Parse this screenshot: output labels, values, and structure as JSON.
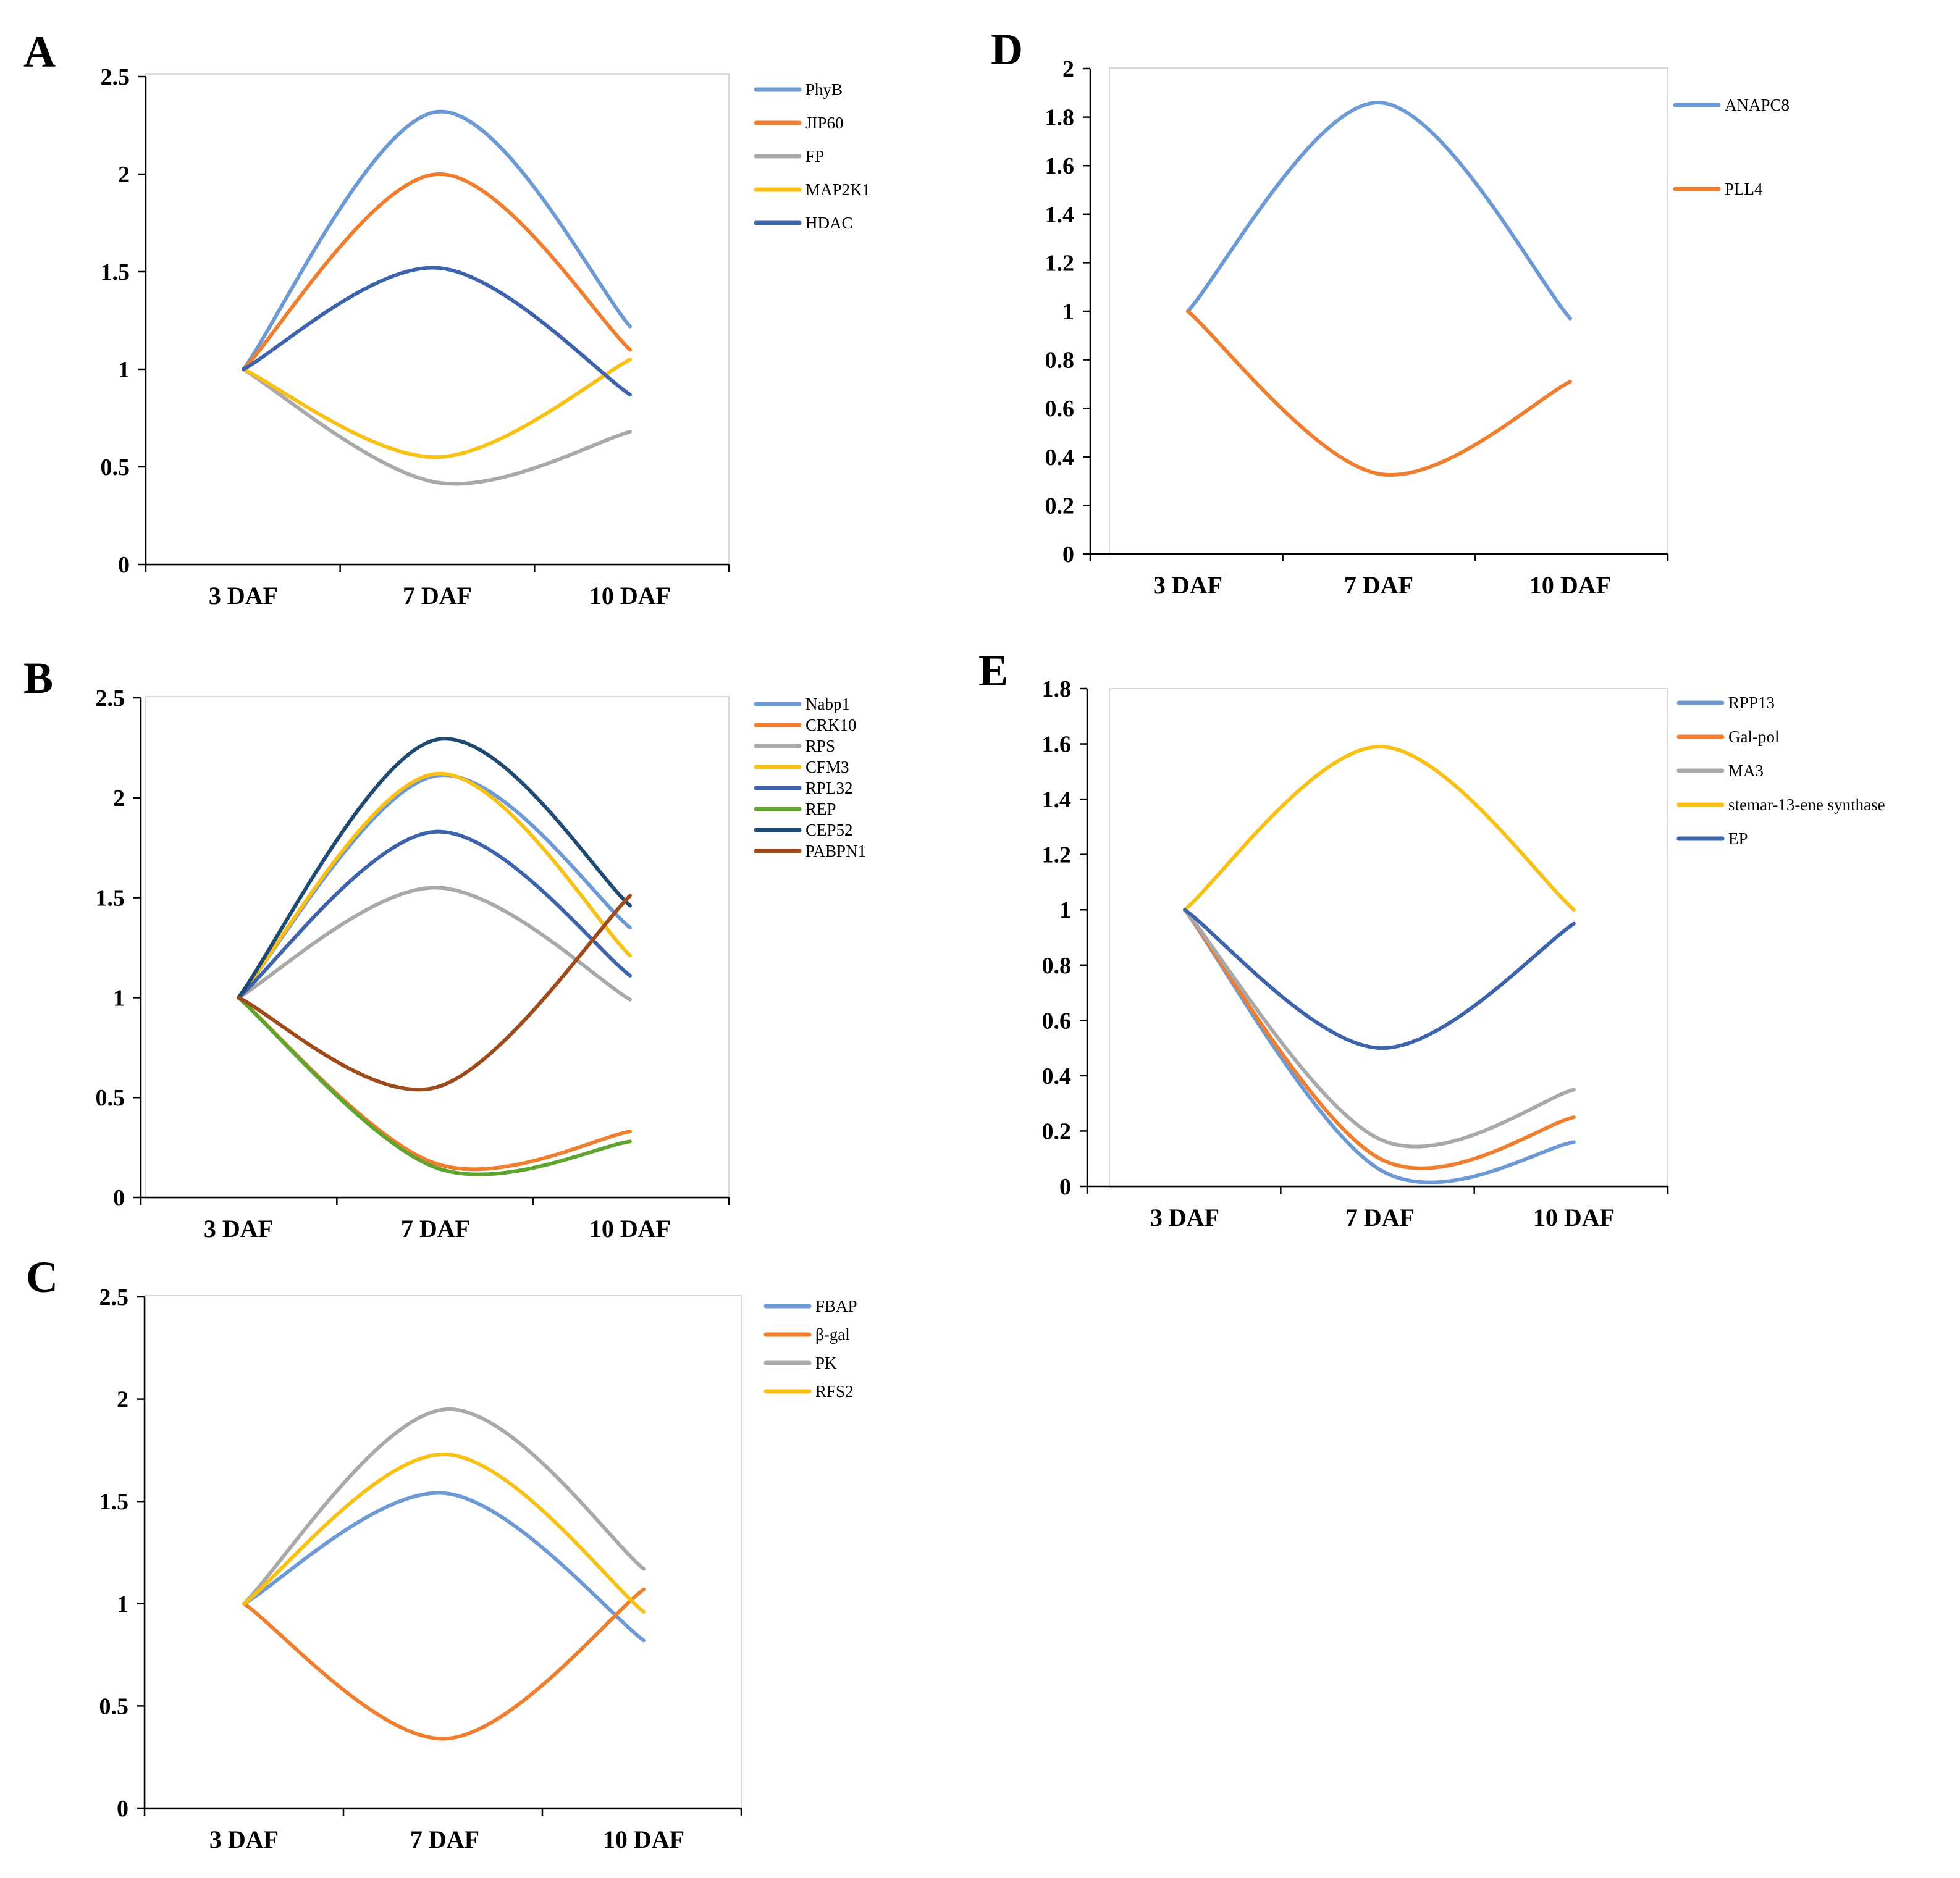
{
  "chart_data": [
    {
      "type": "line",
      "panel": "A",
      "categories": [
        "3 DAF",
        "7 DAF",
        "10 DAF"
      ],
      "ylim": [
        0,
        2.5
      ],
      "yticks": [
        0,
        0.5,
        1,
        1.5,
        2,
        2.5
      ],
      "ytick_labels": [
        "0",
        "0.5",
        "1",
        "1.5",
        "2",
        "2.5"
      ],
      "legend_position": "right",
      "series": [
        {
          "name": "PhyB",
          "color": "#6d9ad4",
          "values": [
            1,
            2.32,
            1.22
          ]
        },
        {
          "name": "JIP60",
          "color": "#ef7e2f",
          "values": [
            1,
            2.0,
            1.1
          ]
        },
        {
          "name": "FP",
          "color": "#a9a9a9",
          "values": [
            1,
            0.42,
            0.68
          ]
        },
        {
          "name": "MAP2K1",
          "color": "#f9c016",
          "values": [
            1,
            0.55,
            1.05
          ]
        },
        {
          "name": "HDAC",
          "color": "#3d63ad",
          "values": [
            1,
            1.52,
            0.87
          ]
        }
      ]
    },
    {
      "type": "line",
      "panel": "B",
      "categories": [
        "3 DAF",
        "7 DAF",
        "10 DAF"
      ],
      "ylim": [
        0,
        2.5
      ],
      "yticks": [
        0,
        0.5,
        1,
        1.5,
        2,
        2.5
      ],
      "ytick_labels": [
        "0",
        "0.5",
        "1",
        "1.5",
        "2",
        "2.5"
      ],
      "legend_position": "right",
      "series": [
        {
          "name": "Nabp1",
          "color": "#6d9ad4",
          "values": [
            1,
            2.11,
            1.35
          ]
        },
        {
          "name": "CRK10",
          "color": "#ef7e2f",
          "values": [
            1,
            0.17,
            0.33
          ]
        },
        {
          "name": "RPS",
          "color": "#a9a9a9",
          "values": [
            1,
            1.55,
            0.99
          ]
        },
        {
          "name": "CFM3",
          "color": "#f9c016",
          "values": [
            1,
            2.12,
            1.21
          ]
        },
        {
          "name": "RPL32",
          "color": "#3d63ad",
          "values": [
            1,
            1.83,
            1.11
          ]
        },
        {
          "name": "REP",
          "color": "#5ea42f",
          "values": [
            1,
            0.15,
            0.28
          ]
        },
        {
          "name": "CEP52",
          "color": "#1f4a72",
          "values": [
            1,
            2.29,
            1.46
          ]
        },
        {
          "name": "PABPN1",
          "color": "#9e4a1a",
          "values": [
            1,
            0.55,
            1.51
          ]
        }
      ]
    },
    {
      "type": "line",
      "panel": "C",
      "categories": [
        "3 DAF",
        "7 DAF",
        "10 DAF"
      ],
      "ylim": [
        0,
        2.5
      ],
      "yticks": [
        0,
        0.5,
        1,
        1.5,
        2,
        2.5
      ],
      "ytick_labels": [
        "0",
        "0.5",
        "1",
        "1.5",
        "2",
        "2.5"
      ],
      "legend_position": "right",
      "series": [
        {
          "name": "FBAP",
          "color": "#6d9ad4",
          "values": [
            1,
            1.54,
            0.82
          ]
        },
        {
          "name": "β-gal",
          "color": "#ef7e2f",
          "values": [
            1,
            0.34,
            1.07
          ]
        },
        {
          "name": "PK",
          "color": "#a9a9a9",
          "values": [
            1,
            1.95,
            1.17
          ]
        },
        {
          "name": "RFS2",
          "color": "#f9c016",
          "values": [
            1,
            1.73,
            0.96
          ]
        }
      ]
    },
    {
      "type": "line",
      "panel": "D",
      "categories": [
        "3 DAF",
        "7 DAF",
        "10 DAF"
      ],
      "ylim": [
        0,
        2
      ],
      "yticks": [
        0,
        0.2,
        0.4,
        0.6,
        0.8,
        1,
        1.2,
        1.4,
        1.6,
        1.8,
        2
      ],
      "ytick_labels": [
        "0",
        "0.2",
        "0.4",
        "0.6",
        "0.8",
        "1",
        "1.2",
        "1.4",
        "1.6",
        "1.8",
        "2"
      ],
      "legend_position": "right",
      "series": [
        {
          "name": "ANAPC8",
          "color": "#6d9ad4",
          "values": [
            1,
            1.86,
            0.97
          ]
        },
        {
          "name": "PLL4",
          "color": "#ef7e2f",
          "values": [
            1,
            0.33,
            0.71
          ]
        }
      ]
    },
    {
      "type": "line",
      "panel": "E",
      "categories": [
        "3 DAF",
        "7 DAF",
        "10 DAF"
      ],
      "ylim": [
        0,
        1.8
      ],
      "yticks": [
        0,
        0.2,
        0.4,
        0.6,
        0.8,
        1,
        1.2,
        1.4,
        1.6,
        1.8
      ],
      "ytick_labels": [
        "0",
        "0.2",
        "0.4",
        "0.6",
        "0.8",
        "1",
        "1.2",
        "1.4",
        "1.6",
        "1.8"
      ],
      "legend_position": "right",
      "series": [
        {
          "name": "RPP13",
          "color": "#6d9ad4",
          "values": [
            1,
            0.06,
            0.16
          ]
        },
        {
          "name": "Gal-pol",
          "color": "#ef7e2f",
          "values": [
            1,
            0.1,
            0.25
          ]
        },
        {
          "name": "MA3",
          "color": "#a9a9a9",
          "values": [
            1,
            0.17,
            0.35
          ]
        },
        {
          "name": "stemar-13-ene synthase",
          "color": "#f9c016",
          "values": [
            1,
            1.59,
            1.0
          ]
        },
        {
          "name": "EP",
          "color": "#3d63ad",
          "values": [
            1,
            0.5,
            0.95
          ]
        }
      ]
    }
  ]
}
